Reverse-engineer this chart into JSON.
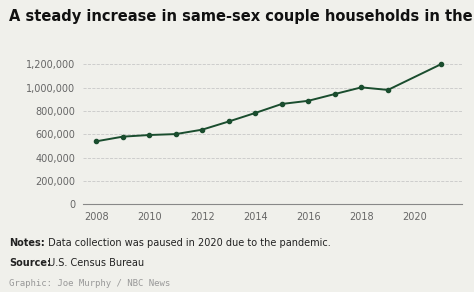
{
  "title": "A steady increase in same-sex couple households in the U.S.",
  "years": [
    2008,
    2009,
    2010,
    2011,
    2012,
    2013,
    2014,
    2015,
    2016,
    2017,
    2018,
    2019,
    2021
  ],
  "values": [
    540000,
    580000,
    594000,
    602000,
    640000,
    710000,
    783000,
    860000,
    887000,
    945000,
    1002000,
    980000,
    1200000
  ],
  "line_color": "#1a4d2e",
  "marker_color": "#1a4d2e",
  "bg_color": "#f0f0eb",
  "grid_color": "#c8c8c8",
  "yticks": [
    0,
    200000,
    400000,
    600000,
    800000,
    1000000,
    1200000
  ],
  "xticks": [
    2008,
    2010,
    2012,
    2014,
    2016,
    2018,
    2020
  ],
  "xlim": [
    2007.5,
    2021.8
  ],
  "ylim": [
    0,
    1300000
  ],
  "notes_bold": "Notes:",
  "notes_text": " Data collection was paused in 2020 due to the pandemic.",
  "source_bold": "Source:",
  "source_text": " U.S. Census Bureau",
  "graphic_text": "Graphic: Joe Murphy / NBC News",
  "title_fontsize": 10.5,
  "tick_fontsize": 7,
  "notes_fontsize": 7,
  "graphic_fontsize": 6.5
}
